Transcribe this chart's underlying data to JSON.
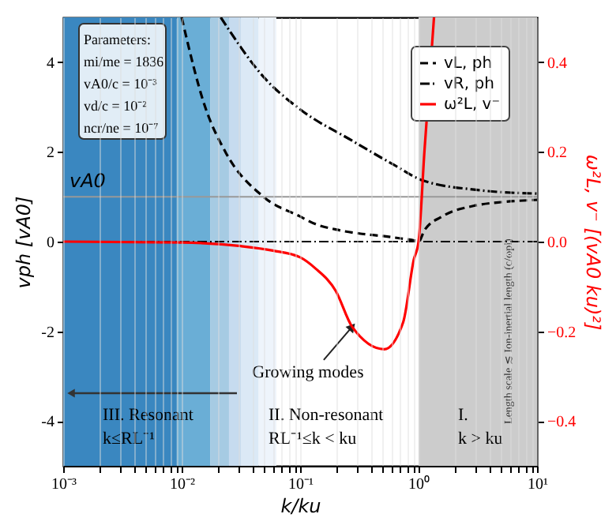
{
  "chart_data": {
    "type": "line",
    "xlabel": "k/ku",
    "ylabel": "vph [vA0]",
    "y2label": "ω²L, v⁻ [(vA0 ku)²]",
    "log": "x",
    "xlim": [
      0.001,
      10
    ],
    "ylim": [
      -5,
      5
    ],
    "y2lim": [
      -0.5,
      0.5
    ],
    "xticks": [
      {
        "value": 0.001,
        "label": "10⁻³"
      },
      {
        "value": 0.002,
        "label": null
      },
      {
        "value": 0.003,
        "label": null
      },
      {
        "value": 0.004,
        "label": null
      },
      {
        "value": 0.005,
        "label": null
      },
      {
        "value": 0.006,
        "label": null
      },
      {
        "value": 0.007,
        "label": null
      },
      {
        "value": 0.008,
        "label": null
      },
      {
        "value": 0.009,
        "label": null
      },
      {
        "value": 0.01,
        "label": "10⁻²"
      },
      {
        "value": 0.02,
        "label": null
      },
      {
        "value": 0.03,
        "label": null
      },
      {
        "value": 0.04,
        "label": null
      },
      {
        "value": 0.05,
        "label": null
      },
      {
        "value": 0.06,
        "label": null
      },
      {
        "value": 0.07,
        "label": null
      },
      {
        "value": 0.08,
        "label": null
      },
      {
        "value": 0.09,
        "label": null
      },
      {
        "value": 0.1,
        "label": "10⁻¹"
      },
      {
        "value": 0.2,
        "label": null
      },
      {
        "value": 0.3,
        "label": null
      },
      {
        "value": 0.4,
        "label": null
      },
      {
        "value": 0.5,
        "label": null
      },
      {
        "value": 0.6,
        "label": null
      },
      {
        "value": 0.7,
        "label": null
      },
      {
        "value": 0.8,
        "label": null
      },
      {
        "value": 0.9,
        "label": null
      },
      {
        "value": 1,
        "label": "10⁰"
      },
      {
        "value": 2,
        "label": null
      },
      {
        "value": 3,
        "label": null
      },
      {
        "value": 4,
        "label": null
      },
      {
        "value": 5,
        "label": null
      },
      {
        "value": 6,
        "label": null
      },
      {
        "value": 7,
        "label": null
      },
      {
        "value": 8,
        "label": null
      },
      {
        "value": 9,
        "label": null
      },
      {
        "value": 10,
        "label": "10¹"
      }
    ],
    "yticks": [
      -4,
      -2,
      0,
      2,
      4
    ],
    "y2ticks": [
      {
        "value": -0.4,
        "label": "−0.4"
      },
      {
        "value": -0.2,
        "label": "−0.2"
      },
      {
        "value": 0,
        "label": "0.0"
      },
      {
        "value": 0.2,
        "label": "0.2"
      },
      {
        "value": 0.4,
        "label": "0.4"
      }
    ],
    "grid": "x",
    "legend": "top right",
    "series": [
      {
        "name": "vL, ph",
        "color": "#000000",
        "line_style": "dashed",
        "x": [
          0.01,
          0.0158,
          0.0234,
          0.049,
          0.1,
          0.135,
          0.2,
          0.316,
          0.513,
          0.708,
          0.933,
          1.0,
          1.12,
          1.58,
          2.95,
          5.0,
          10
        ],
        "values": [
          5,
          3.0,
          2.0,
          1.0,
          0.56,
          0.39,
          0.27,
          0.18,
          0.12,
          0.07,
          0.02,
          0.0,
          0.25,
          0.56,
          0.8,
          0.88,
          0.93
        ]
      },
      {
        "name": "vR, ph",
        "color": "#000000",
        "line_style": "dashdot",
        "x": [
          0.0214,
          0.05,
          0.1,
          0.275,
          0.63,
          1.07,
          3.16,
          10
        ],
        "values": [
          5,
          3.65,
          2.95,
          2.25,
          1.7,
          1.37,
          1.15,
          1.07
        ]
      },
      {
        "name": "ω²L, v⁻",
        "color": "#ff0000",
        "line_style": "solid",
        "axis": "y2",
        "x": [
          0.001,
          0.01,
          0.0316,
          0.0589,
          0.1,
          0.135,
          0.2,
          0.275,
          0.513,
          0.741,
          0.912,
          1.0,
          1.12,
          1.35
        ],
        "values": [
          0,
          -0.002,
          -0.01,
          -0.02,
          -0.035,
          -0.06,
          -0.11,
          -0.19,
          -0.24,
          -0.18,
          -0.04,
          0.0,
          0.2,
          0.5
        ]
      }
    ],
    "ref_lines": [
      {
        "axis": "y",
        "value": 1,
        "label": "vA0",
        "color": "#999999",
        "line_style": "solid"
      },
      {
        "axis": "y",
        "value": 0,
        "label": null,
        "color": "#000000",
        "line_style": "dashdot"
      }
    ],
    "bands": [
      {
        "axis": "x",
        "from": 0.001,
        "to": 0.0091,
        "label": null,
        "color": "#3a87c0"
      },
      {
        "axis": "x",
        "from": 0.0091,
        "to": 0.0174,
        "label": null,
        "color": "#6aaed6"
      },
      {
        "axis": "x",
        "from": 0.0174,
        "to": 0.0251,
        "label": null,
        "color": "#a6cbe3"
      },
      {
        "axis": "x",
        "from": 0.0251,
        "to": 0.0316,
        "label": null,
        "color": "#c6dbef"
      },
      {
        "axis": "x",
        "from": 0.0316,
        "to": 0.0447,
        "label": null,
        "color": "#dbe9f6"
      },
      {
        "axis": "x",
        "from": 0.0447,
        "to": 0.063,
        "label": null,
        "color": "#eef4fb"
      },
      {
        "axis": "x",
        "from": 1,
        "to": 10,
        "label": "Length scale ≲ Ion-inertial length (c/ωpi)",
        "color": "#cccccc"
      }
    ],
    "annotations": [
      "Parameters:\nmi/me = 1836\nvA0/c = 10⁻³\nvd/c = 10⁻²\nncr/ne = 10⁻⁷",
      {
        "text": "Growing modes",
        "x": 0.275,
        "y": -1.9
      },
      "III. Resonant\nk≤RL⁻¹",
      "II. Non-resonant\nRL⁻¹≤k < ku",
      "I.\nk > ku"
    ]
  }
}
